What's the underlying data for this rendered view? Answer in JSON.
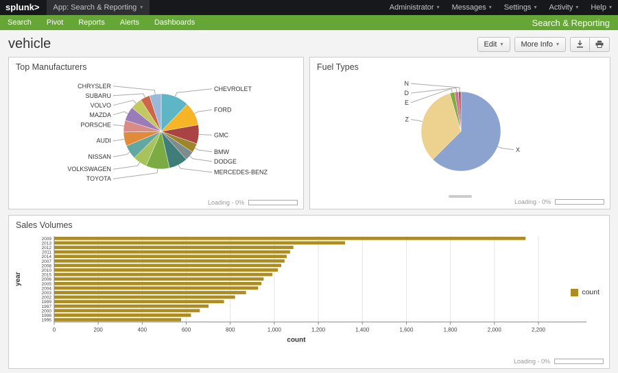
{
  "topbar": {
    "logo": "splunk>",
    "app_menu": "App: Search & Reporting",
    "right_menus": [
      "Administrator",
      "Messages",
      "Settings",
      "Activity",
      "Help"
    ]
  },
  "navbar": {
    "items": [
      "Search",
      "Pivot",
      "Reports",
      "Alerts",
      "Dashboards"
    ],
    "app_title": "Search & Reporting"
  },
  "page": {
    "title": "vehicle",
    "edit_label": "Edit",
    "more_info_label": "More Info"
  },
  "icons": {
    "caret": "▾"
  },
  "colors": {
    "brand_green": "#65a637",
    "topbar_bg": "#17181b",
    "bar_series": "#ad8c20"
  },
  "panels": [
    {
      "title": "Top Manufacturers",
      "loading": "Loading - 0%"
    },
    {
      "title": "Fuel Types",
      "loading": "Loading - 0%"
    },
    {
      "title": "Sales Volumes",
      "loading": "Loading - 0%"
    }
  ],
  "chart_data": [
    {
      "type": "pie",
      "title": "Top Manufacturers",
      "categories": [
        "CHEVROLET",
        "FORD",
        "GMC",
        "BMW",
        "DODGE",
        "MERCEDES-BENZ",
        "TOYOTA",
        "VOLKSWAGEN",
        "NISSAN",
        "AUDI",
        "PORSCHE",
        "MAZDA",
        "VOLVO",
        "SUBARU",
        "CHRYSLER"
      ],
      "values": [
        12,
        10,
        8,
        4,
        4,
        8,
        10,
        6,
        6,
        6,
        5,
        6,
        5,
        4,
        5
      ],
      "colors": [
        "#5eb5c6",
        "#f5b527",
        "#a94442",
        "#9d852b",
        "#7f8c8d",
        "#3e7d7a",
        "#7cab43",
        "#a6c45a",
        "#62a8a0",
        "#e08a3c",
        "#d98b86",
        "#9b7bb8",
        "#c3c95f",
        "#cf6548",
        "#9ab8d8"
      ],
      "legend_position": "callout-labels"
    },
    {
      "type": "pie",
      "title": "Fuel Types",
      "categories": [
        "X",
        "Z",
        "E",
        "D",
        "N"
      ],
      "values": [
        62.5,
        33,
        2,
        1.5,
        1
      ],
      "colors": [
        "#8ca3cf",
        "#ecd28e",
        "#7fae3f",
        "#d06d9d",
        "#a6524a"
      ],
      "legend_position": "callout-labels"
    },
    {
      "type": "bar",
      "orientation": "horizontal",
      "title": "Sales Volumes",
      "categories": [
        "2009",
        "2013",
        "2012",
        "2011",
        "2014",
        "2007",
        "2008",
        "2010",
        "2015",
        "2006",
        "2005",
        "2004",
        "2003",
        "2002",
        "1999",
        "1997",
        "2000",
        "1998",
        "1996"
      ],
      "values": [
        2140,
        1320,
        1085,
        1070,
        1055,
        1045,
        1030,
        1015,
        990,
        950,
        940,
        925,
        870,
        820,
        770,
        700,
        660,
        620,
        575
      ],
      "xlabel": "count",
      "ylabel": "year",
      "xlim": [
        0,
        2300
      ],
      "xticks": [
        0,
        200,
        400,
        600,
        800,
        1000,
        1200,
        1400,
        1600,
        1800,
        2000,
        2200
      ],
      "xtick_labels": [
        "0",
        "200",
        "400",
        "600",
        "800",
        "1,000",
        "1,200",
        "1,400",
        "1,600",
        "1,800",
        "2,000",
        "2,200"
      ],
      "grid": true,
      "legend": [
        {
          "label": "count",
          "color": "#ad8c20"
        }
      ]
    }
  ]
}
